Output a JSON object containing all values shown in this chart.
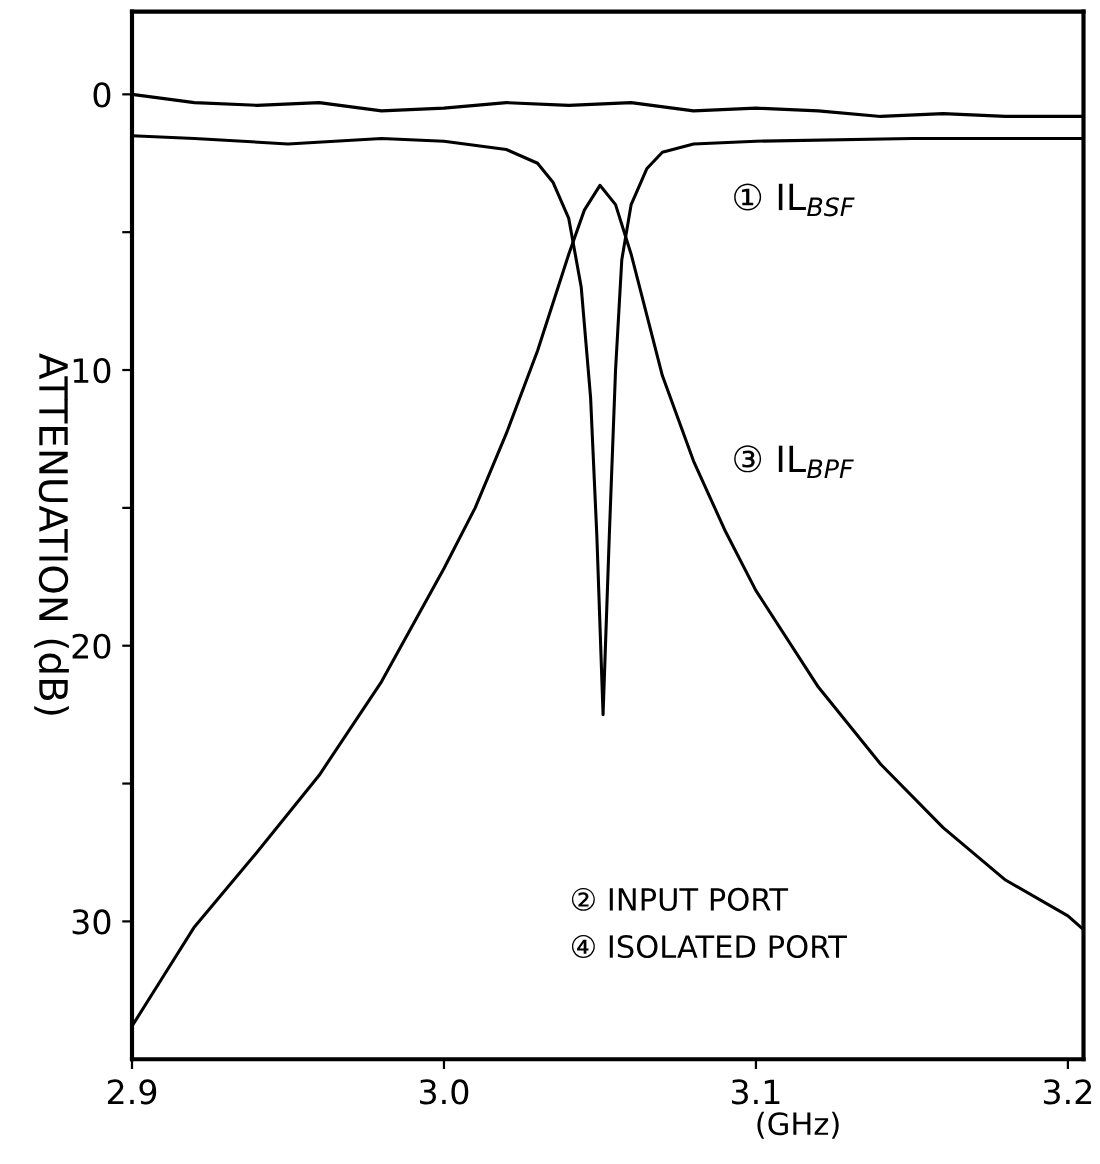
{
  "chart_data": {
    "type": "line",
    "xlabel": "(GHz)",
    "ylabel": "ATTENUATION (dB)",
    "xlim": [
      2.9,
      3.205
    ],
    "ylim": [
      35,
      -3
    ],
    "xticks": [
      2.9,
      {
        "value": 3.0,
        "label": "3.0"
      },
      3.1,
      3.2
    ],
    "yticks": [
      0,
      {
        "value": 5,
        "label": null
      },
      10,
      {
        "value": 15,
        "label": null
      },
      20,
      {
        "value": 25,
        "label": null
      },
      30
    ],
    "grid": false,
    "marker": "none",
    "line_style": "solid",
    "series": [
      {
        "color": "#000000",
        "x": [
          2.9,
          2.92,
          2.94,
          2.96,
          2.98,
          3.0,
          3.02,
          3.04,
          3.06,
          3.08,
          3.1,
          3.12,
          3.14,
          3.16,
          3.18,
          3.205
        ],
        "values": [
          0,
          0.3,
          0.4,
          0.3,
          0.6,
          0.5,
          0.3,
          0.4,
          0.3,
          0.6,
          0.5,
          0.6,
          0.8,
          0.7,
          0.8,
          0.8
        ]
      },
      {
        "color": "#000000",
        "x": [
          2.9,
          2.92,
          2.95,
          2.98,
          3.0,
          3.02,
          3.03,
          3.035,
          3.04,
          3.044,
          3.047,
          3.049,
          3.051,
          3.053,
          3.055,
          3.057,
          3.06,
          3.065,
          3.07,
          3.08,
          3.1,
          3.15,
          3.205
        ],
        "values": [
          1.5,
          1.6,
          1.8,
          1.6,
          1.7,
          2.0,
          2.5,
          3.2,
          4.5,
          7,
          11,
          16,
          22.5,
          16,
          10,
          6,
          4,
          2.7,
          2.1,
          1.8,
          1.7,
          1.6,
          1.6
        ]
      },
      {
        "color": "#000000",
        "x": [
          2.9,
          2.91,
          2.92,
          2.94,
          2.96,
          2.98,
          3.0,
          3.01,
          3.02,
          3.03,
          3.04,
          3.045,
          3.05,
          3.055,
          3.06,
          3.065,
          3.07,
          3.08,
          3.09,
          3.1,
          3.12,
          3.14,
          3.16,
          3.18,
          3.2,
          3.205
        ],
        "values": [
          33.8,
          32,
          30.2,
          27.5,
          24.7,
          21.3,
          17.2,
          15,
          12.3,
          9.3,
          5.8,
          4.2,
          3.3,
          4.0,
          5.8,
          8,
          10.2,
          13.3,
          15.8,
          18,
          21.5,
          24.3,
          26.6,
          28.5,
          29.8,
          30.3
        ]
      }
    ],
    "annotations": [
      "① IL$_{BSF}$",
      "③ IL$_{BPF}$",
      "② INPUT PORT",
      "④ ISOLATED PORT"
    ]
  }
}
